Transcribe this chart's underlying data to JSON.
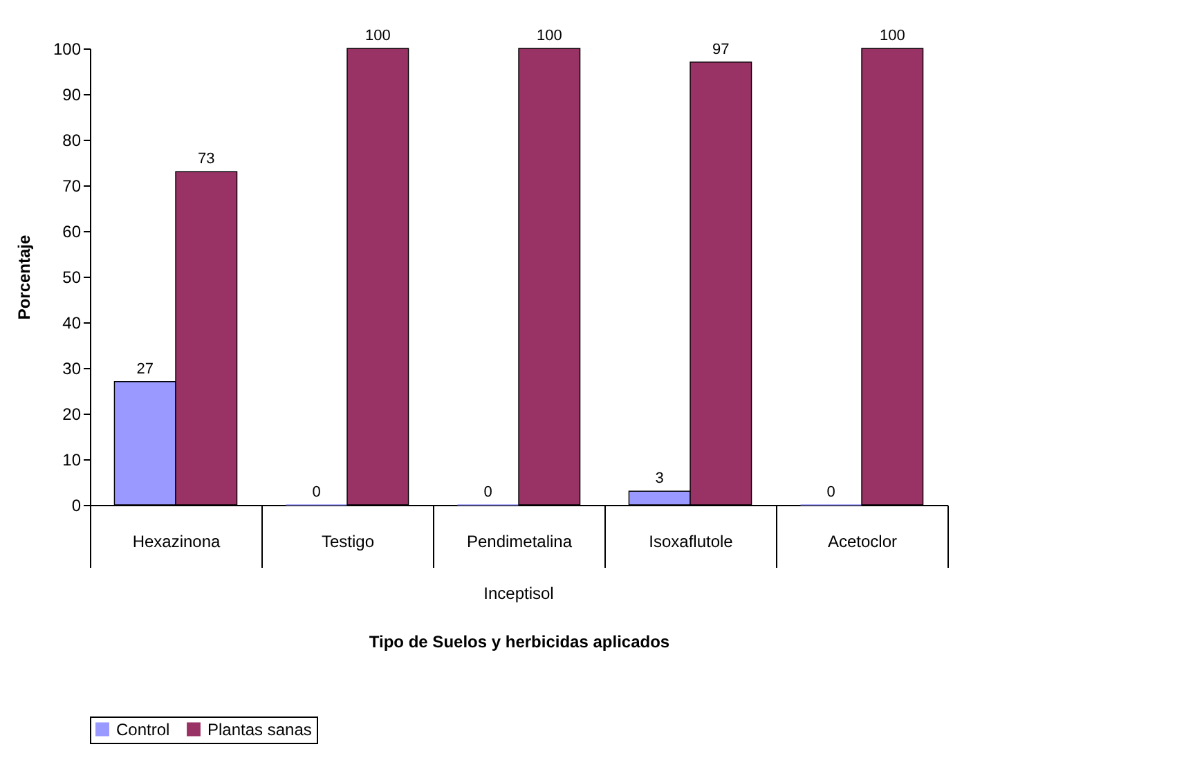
{
  "chart_data": {
    "type": "bar",
    "xlabel": "Tipo de Suelos y herbicidas aplicados",
    "ylabel": "Porcentaje",
    "categories": [
      "Hexazinona",
      "Testigo",
      "Pendimetalina",
      "Isoxaflutole",
      "Acetoclor"
    ],
    "series": [
      {
        "name": "Control",
        "color": "#9999ff",
        "values": [
          27,
          0,
          0,
          3,
          0
        ]
      },
      {
        "name": "Plantas sanas",
        "color": "#993366",
        "values": [
          73,
          100,
          100,
          97,
          100
        ]
      }
    ],
    "ylim": [
      0,
      100
    ],
    "yticks": [
      0,
      10,
      20,
      30,
      40,
      50,
      60,
      70,
      80,
      90,
      100
    ],
    "annotations": [
      "Inceptisol"
    ],
    "data_labels": true,
    "legend": "bottom",
    "grid": false
  }
}
